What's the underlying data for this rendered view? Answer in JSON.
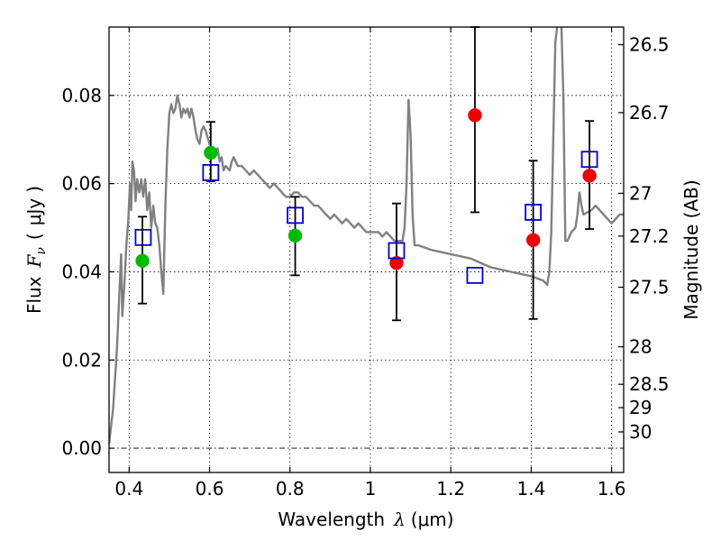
{
  "chart_data": {
    "type": "scatter",
    "title": "",
    "xlabel": "Wavelength",
    "xlabel_symbol": "λ",
    "xlabel_unit": "(μm)",
    "ylabel": "Flux",
    "ylabel_symbol": "F",
    "ylabel_subscript": "ν",
    "ylabel_unit_open": "(",
    "ylabel_unit": "μJy",
    "ylabel_unit_close": ")",
    "right_ylabel": "Magnitude (AB)",
    "xlim": [
      0.35,
      1.63
    ],
    "ylim": [
      -0.0055,
      0.0955
    ],
    "grid": true,
    "xticks": [
      0.4,
      0.6,
      0.8,
      1.0,
      1.2,
      1.4,
      1.6
    ],
    "xtick_labels": [
      "0.4",
      "0.6",
      "0.8",
      "1",
      "1.2",
      "1.4",
      "1.6"
    ],
    "yticks": [
      0.0,
      0.02,
      0.04,
      0.06,
      0.08
    ],
    "ytick_labels": [
      "0.00",
      "0.02",
      "0.04",
      "0.06",
      "0.08"
    ],
    "right_ticks": [
      {
        "label": "26.5",
        "flux": 0.0915
      },
      {
        "label": "26.7",
        "flux": 0.0761
      },
      {
        "label": "27",
        "flux": 0.0578
      },
      {
        "label": "27.2",
        "flux": 0.0481
      },
      {
        "label": "27.5",
        "flux": 0.0365
      },
      {
        "label": "28",
        "flux": 0.023
      },
      {
        "label": "28.5",
        "flux": 0.0145
      },
      {
        "label": "29",
        "flux": 0.0092
      },
      {
        "label": "30",
        "flux": 0.0037
      }
    ],
    "zero_line": 0.0,
    "colors": {
      "model": "#808080",
      "green": "#00bb00",
      "red": "#ee0000",
      "square": "#0000cc",
      "errorbar": "#000000"
    },
    "series": [
      {
        "name": "model-spectrum",
        "kind": "line",
        "points": [
          [
            0.35,
            0.001
          ],
          [
            0.36,
            0.009
          ],
          [
            0.37,
            0.023
          ],
          [
            0.375,
            0.034
          ],
          [
            0.38,
            0.044
          ],
          [
            0.383,
            0.03
          ],
          [
            0.388,
            0.037
          ],
          [
            0.393,
            0.046
          ],
          [
            0.398,
            0.052
          ],
          [
            0.402,
            0.06
          ],
          [
            0.405,
            0.054
          ],
          [
            0.408,
            0.065
          ],
          [
            0.412,
            0.063
          ],
          [
            0.416,
            0.056
          ],
          [
            0.42,
            0.061
          ],
          [
            0.425,
            0.058
          ],
          [
            0.43,
            0.061
          ],
          [
            0.435,
            0.057
          ],
          [
            0.44,
            0.061
          ],
          [
            0.445,
            0.054
          ],
          [
            0.45,
            0.058
          ],
          [
            0.455,
            0.05
          ],
          [
            0.46,
            0.055
          ],
          [
            0.465,
            0.051
          ],
          [
            0.47,
            0.05
          ],
          [
            0.475,
            0.046
          ],
          [
            0.48,
            0.04
          ],
          [
            0.485,
            0.035
          ],
          [
            0.49,
            0.055
          ],
          [
            0.495,
            0.068
          ],
          [
            0.5,
            0.076
          ],
          [
            0.505,
            0.078
          ],
          [
            0.51,
            0.076
          ],
          [
            0.515,
            0.077
          ],
          [
            0.52,
            0.08
          ],
          [
            0.525,
            0.078
          ],
          [
            0.53,
            0.075
          ],
          [
            0.535,
            0.077
          ],
          [
            0.54,
            0.076
          ],
          [
            0.545,
            0.077
          ],
          [
            0.55,
            0.075
          ],
          [
            0.555,
            0.077
          ],
          [
            0.56,
            0.075
          ],
          [
            0.565,
            0.072
          ],
          [
            0.57,
            0.07
          ],
          [
            0.575,
            0.069
          ],
          [
            0.58,
            0.072
          ],
          [
            0.585,
            0.073
          ],
          [
            0.59,
            0.072
          ],
          [
            0.6,
            0.069
          ],
          [
            0.61,
            0.066
          ],
          [
            0.62,
            0.068
          ],
          [
            0.625,
            0.065
          ],
          [
            0.63,
            0.066
          ],
          [
            0.635,
            0.063
          ],
          [
            0.64,
            0.064
          ],
          [
            0.65,
            0.063
          ],
          [
            0.655,
            0.065
          ],
          [
            0.66,
            0.066
          ],
          [
            0.67,
            0.064
          ],
          [
            0.68,
            0.064
          ],
          [
            0.69,
            0.063
          ],
          [
            0.7,
            0.062
          ],
          [
            0.71,
            0.063
          ],
          [
            0.72,
            0.062
          ],
          [
            0.73,
            0.061
          ],
          [
            0.74,
            0.06
          ],
          [
            0.75,
            0.059
          ],
          [
            0.76,
            0.06
          ],
          [
            0.77,
            0.059
          ],
          [
            0.78,
            0.058
          ],
          [
            0.79,
            0.057
          ],
          [
            0.8,
            0.057
          ],
          [
            0.81,
            0.058
          ],
          [
            0.82,
            0.058
          ],
          [
            0.83,
            0.057
          ],
          [
            0.84,
            0.057
          ],
          [
            0.85,
            0.056
          ],
          [
            0.86,
            0.055
          ],
          [
            0.87,
            0.055
          ],
          [
            0.88,
            0.054
          ],
          [
            0.89,
            0.053
          ],
          [
            0.9,
            0.052
          ],
          [
            0.91,
            0.053
          ],
          [
            0.92,
            0.052
          ],
          [
            0.93,
            0.051
          ],
          [
            0.94,
            0.052
          ],
          [
            0.95,
            0.051
          ],
          [
            0.96,
            0.05
          ],
          [
            0.97,
            0.051
          ],
          [
            0.98,
            0.05
          ],
          [
            0.99,
            0.049
          ],
          [
            1.0,
            0.049
          ],
          [
            1.01,
            0.049
          ],
          [
            1.02,
            0.049
          ],
          [
            1.03,
            0.048
          ],
          [
            1.04,
            0.049
          ],
          [
            1.05,
            0.048
          ],
          [
            1.06,
            0.047
          ],
          [
            1.07,
            0.047
          ],
          [
            1.08,
            0.047
          ],
          [
            1.085,
            0.05
          ],
          [
            1.09,
            0.06
          ],
          [
            1.095,
            0.079
          ],
          [
            1.1,
            0.071
          ],
          [
            1.105,
            0.053
          ],
          [
            1.11,
            0.046
          ],
          [
            1.12,
            0.046
          ],
          [
            1.15,
            0.045
          ],
          [
            1.2,
            0.044
          ],
          [
            1.25,
            0.043
          ],
          [
            1.3,
            0.041
          ],
          [
            1.35,
            0.04
          ],
          [
            1.4,
            0.039
          ],
          [
            1.43,
            0.038
          ],
          [
            1.44,
            0.037
          ],
          [
            1.445,
            0.04
          ],
          [
            1.45,
            0.049
          ],
          [
            1.455,
            0.07
          ],
          [
            1.46,
            0.092
          ],
          [
            1.465,
            0.096
          ],
          [
            1.475,
            0.096
          ],
          [
            1.48,
            0.08
          ],
          [
            1.485,
            0.047
          ],
          [
            1.49,
            0.047
          ],
          [
            1.5,
            0.049
          ],
          [
            1.51,
            0.05
          ],
          [
            1.515,
            0.053
          ],
          [
            1.52,
            0.058
          ],
          [
            1.525,
            0.055
          ],
          [
            1.53,
            0.053
          ],
          [
            1.55,
            0.054
          ],
          [
            1.56,
            0.055
          ],
          [
            1.58,
            0.053
          ],
          [
            1.6,
            0.051
          ],
          [
            1.61,
            0.052
          ],
          [
            1.62,
            0.053
          ],
          [
            1.63,
            0.053
          ]
        ]
      },
      {
        "name": "green-points",
        "kind": "marker",
        "marker": "circle",
        "color": "#00bb00",
        "points": [
          [
            0.433,
            0.0425
          ],
          [
            0.603,
            0.067
          ],
          [
            0.813,
            0.0482
          ]
        ]
      },
      {
        "name": "red-points",
        "kind": "marker",
        "marker": "circle",
        "color": "#ee0000",
        "points": [
          [
            1.065,
            0.042
          ],
          [
            1.26,
            0.0755
          ],
          [
            1.405,
            0.0472
          ],
          [
            1.545,
            0.0618
          ]
        ]
      },
      {
        "name": "blue-squares",
        "kind": "marker",
        "marker": "open-square",
        "color": "#0000cc",
        "points": [
          [
            0.435,
            0.0478
          ],
          [
            0.603,
            0.0625
          ],
          [
            0.813,
            0.0528
          ],
          [
            1.065,
            0.0448
          ],
          [
            1.26,
            0.0392
          ],
          [
            1.405,
            0.0535
          ],
          [
            1.545,
            0.0655
          ]
        ]
      }
    ],
    "error_bars": [
      {
        "x": 0.433,
        "low": 0.0328,
        "high": 0.0525
      },
      {
        "x": 0.603,
        "low": 0.0605,
        "high": 0.074
      },
      {
        "x": 0.813,
        "low": 0.0392,
        "high": 0.057
      },
      {
        "x": 1.065,
        "low": 0.029,
        "high": 0.0555
      },
      {
        "x": 1.26,
        "low": 0.0535,
        "high": 0.0955
      },
      {
        "x": 1.405,
        "low": 0.0293,
        "high": 0.0652
      },
      {
        "x": 1.545,
        "low": 0.0497,
        "high": 0.0742
      }
    ]
  }
}
